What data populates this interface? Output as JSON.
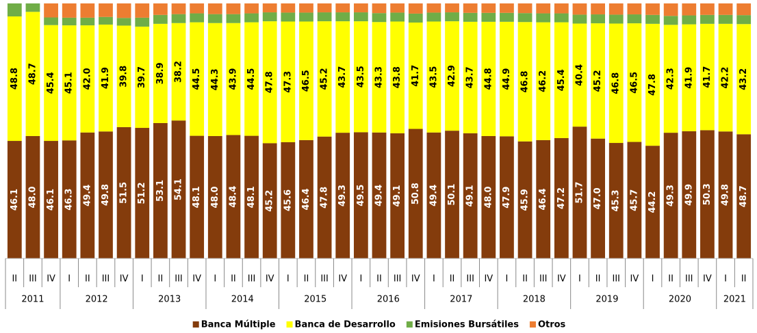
{
  "chart_data": {
    "type": "stacked_bar",
    "year_groups": [
      {
        "name": "2011",
        "quarters": [
          "II",
          "III",
          "IV"
        ]
      },
      {
        "name": "2012",
        "quarters": [
          "I",
          "II",
          "III",
          "IV"
        ]
      },
      {
        "name": "2013",
        "quarters": [
          "I",
          "II",
          "III",
          "IV"
        ]
      },
      {
        "name": "2014",
        "quarters": [
          "I",
          "II",
          "III",
          "IV"
        ]
      },
      {
        "name": "2015",
        "quarters": [
          "I",
          "II",
          "III",
          "IV"
        ]
      },
      {
        "name": "2016",
        "quarters": [
          "I",
          "II",
          "III",
          "IV"
        ]
      },
      {
        "name": "2017",
        "quarters": [
          "I",
          "II",
          "III",
          "IV"
        ]
      },
      {
        "name": "2018",
        "quarters": [
          "I",
          "II",
          "III",
          "IV"
        ]
      },
      {
        "name": "2019",
        "quarters": [
          "I",
          "II",
          "III",
          "IV"
        ]
      },
      {
        "name": "2020",
        "quarters": [
          "I",
          "II",
          "III",
          "IV"
        ]
      },
      {
        "name": "2021",
        "quarters": [
          "I",
          "II"
        ]
      }
    ],
    "ylim": [
      0,
      100
    ],
    "series": [
      {
        "name": "Banca Múltiple",
        "color": "#843C0C",
        "label_color": "#ffffff",
        "values": [
          46.1,
          48.0,
          46.1,
          46.3,
          49.4,
          49.8,
          51.5,
          51.2,
          53.1,
          54.1,
          48.1,
          48.0,
          48.4,
          48.1,
          45.2,
          45.6,
          46.4,
          47.8,
          49.3,
          49.5,
          49.4,
          49.1,
          50.8,
          49.4,
          50.1,
          49.1,
          48.0,
          47.9,
          45.9,
          46.4,
          47.2,
          51.7,
          47.0,
          45.3,
          45.7,
          44.2,
          49.3,
          49.9,
          50.3,
          49.8,
          48.7
        ],
        "value_labels": [
          "46.1",
          "48.0",
          "46.1",
          "46.3",
          "49.4",
          "49.8",
          "51.5",
          "51.2",
          "53.1",
          "54.1",
          "48.1",
          "48.0",
          "48.4",
          "48.1",
          "45.2",
          "45.6",
          "46.4",
          "47.8",
          "49.3",
          "49.5",
          "49.4",
          "49.1",
          "50.8",
          "49.4",
          "50.1",
          "49.1",
          "48.0",
          "47.9",
          "45.9",
          "46.4",
          "47.2",
          "51.7",
          "47.0",
          "45.3",
          "45.7",
          "44.2",
          "49.3",
          "49.9",
          "50.3",
          "49.8",
          "48.7"
        ]
      },
      {
        "name": "Banca de Desarrollo",
        "color": "#FFFF00",
        "label_color": "#000000",
        "values": [
          48.8,
          48.7,
          45.4,
          45.1,
          42.0,
          41.9,
          39.8,
          39.7,
          38.9,
          38.2,
          44.5,
          44.3,
          43.9,
          44.5,
          47.8,
          47.3,
          46.5,
          45.2,
          43.7,
          43.5,
          43.3,
          43.8,
          41.7,
          43.5,
          42.9,
          43.7,
          44.8,
          44.9,
          46.8,
          46.2,
          45.4,
          40.4,
          45.2,
          46.8,
          46.5,
          47.8,
          42.3,
          41.9,
          41.7,
          42.2,
          43.2
        ],
        "value_labels": [
          "48.8",
          "48.7",
          "45.4",
          "45.1",
          "42.0",
          "41.9",
          "39.8",
          "39.7",
          "38.9",
          "38.2",
          "44.5",
          "44.3",
          "43.9",
          "44.5",
          "47.8",
          "47.3",
          "46.5",
          "45.2",
          "43.7",
          "43.5",
          "43.3",
          "43.8",
          "41.7",
          "43.5",
          "42.9",
          "43.7",
          "44.8",
          "44.9",
          "46.8",
          "46.2",
          "45.4",
          "40.4",
          "45.2",
          "46.8",
          "46.5",
          "47.8",
          "42.3",
          "41.9",
          "41.7",
          "42.2",
          "43.2"
        ]
      },
      {
        "name": "Emisiones Bursátiles",
        "color": "#70AD47",
        "values": [
          5.1,
          3.3,
          3.0,
          3.0,
          3.0,
          3.0,
          3.0,
          3.5,
          3.5,
          3.5,
          3.5,
          3.5,
          3.5,
          3.5,
          3.5,
          3.5,
          3.5,
          3.5,
          3.5,
          3.5,
          3.5,
          3.5,
          3.5,
          3.5,
          3.5,
          3.5,
          3.5,
          3.5,
          3.5,
          3.5,
          3.5,
          3.5,
          3.5,
          3.5,
          3.5,
          3.5,
          3.5,
          3.5,
          3.5,
          3.5,
          3.5
        ]
      },
      {
        "name": "Otros",
        "color": "#ED7D31",
        "values": [
          0,
          0,
          5.5,
          5.6,
          5.6,
          5.3,
          5.7,
          5.6,
          4.5,
          4.2,
          3.9,
          4.2,
          4.2,
          3.9,
          3.5,
          3.6,
          3.6,
          3.5,
          3.5,
          3.5,
          3.8,
          3.6,
          4.0,
          3.6,
          3.5,
          3.7,
          3.7,
          3.7,
          3.8,
          3.9,
          3.9,
          4.4,
          4.3,
          4.4,
          4.3,
          4.5,
          4.9,
          4.7,
          4.5,
          4.5,
          4.6
        ]
      }
    ]
  }
}
